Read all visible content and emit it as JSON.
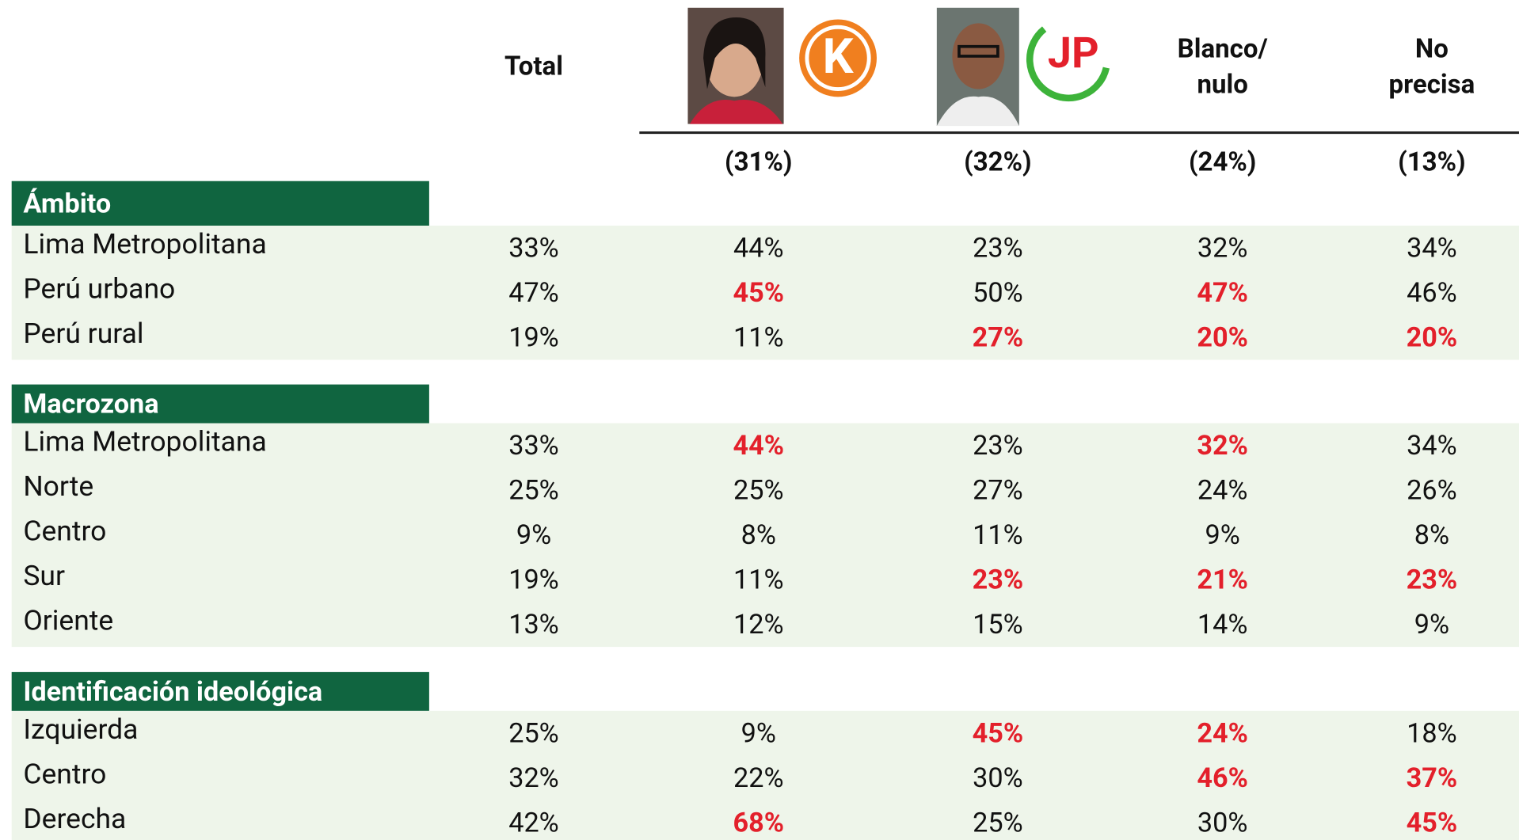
{
  "header": {
    "columns": [
      {
        "label": "Total"
      },
      {
        "logo": "K",
        "share": "(31%)"
      },
      {
        "logo": "JP",
        "share": "(32%)"
      },
      {
        "label_lines": [
          "Blanco/",
          "nulo"
        ],
        "share": "(24%)"
      },
      {
        "label_lines": [
          "No",
          "precisa"
        ],
        "share": "(13%)"
      }
    ]
  },
  "highlight_color": "#e3202b",
  "sections": [
    {
      "title": "Ámbito",
      "rows": [
        {
          "label": "Lima Metropolitana",
          "cells": [
            {
              "text": "33%"
            },
            {
              "text": "44%"
            },
            {
              "text": "23%"
            },
            {
              "text": "32%"
            },
            {
              "text": "34%"
            }
          ]
        },
        {
          "label": "Perú urbano",
          "cells": [
            {
              "text": "47%"
            },
            {
              "text": "45%",
              "highlight": true
            },
            {
              "text": "50%"
            },
            {
              "text": "47%",
              "highlight": true
            },
            {
              "text": "46%"
            }
          ]
        },
        {
          "label": "Perú rural",
          "cells": [
            {
              "text": "19%"
            },
            {
              "text": "11%"
            },
            {
              "text": "27%",
              "highlight": true
            },
            {
              "text": "20%",
              "highlight": true
            },
            {
              "text": "20%",
              "highlight": true
            }
          ]
        }
      ]
    },
    {
      "title": "Macrozona",
      "rows": [
        {
          "label": "Lima Metropolitana",
          "cells": [
            {
              "text": "33%"
            },
            {
              "text": "44%",
              "highlight": true
            },
            {
              "text": "23%"
            },
            {
              "text": "32%",
              "highlight": true
            },
            {
              "text": "34%"
            }
          ]
        },
        {
          "label": "Norte",
          "cells": [
            {
              "text": "25%"
            },
            {
              "text": "25%"
            },
            {
              "text": "27%"
            },
            {
              "text": "24%"
            },
            {
              "text": "26%"
            }
          ]
        },
        {
          "label": "Centro",
          "cells": [
            {
              "text": "9%"
            },
            {
              "text": "8%"
            },
            {
              "text": "11%"
            },
            {
              "text": "9%"
            },
            {
              "text": "8%"
            }
          ]
        },
        {
          "label": "Sur",
          "cells": [
            {
              "text": "19%"
            },
            {
              "text": "11%"
            },
            {
              "text": "23%",
              "highlight": true
            },
            {
              "text": "21%",
              "highlight": true
            },
            {
              "text": "23%",
              "highlight": true
            }
          ]
        },
        {
          "label": "Oriente",
          "cells": [
            {
              "text": "13%"
            },
            {
              "text": "12%"
            },
            {
              "text": "15%"
            },
            {
              "text": "14%"
            },
            {
              "text": "9%"
            }
          ]
        }
      ]
    },
    {
      "title": "Identificación ideológica",
      "rows": [
        {
          "label": "Izquierda",
          "cells": [
            {
              "text": "25%"
            },
            {
              "text": "9%"
            },
            {
              "text": "45%",
              "highlight": true
            },
            {
              "text": "24%",
              "highlight": true
            },
            {
              "text": "18%"
            }
          ]
        },
        {
          "label": "Centro",
          "cells": [
            {
              "text": "32%"
            },
            {
              "text": "22%"
            },
            {
              "text": "30%"
            },
            {
              "text": "46%",
              "highlight": true
            },
            {
              "text": "37%",
              "highlight": true
            }
          ]
        },
        {
          "label": "Derecha",
          "cells": [
            {
              "text": "42%"
            },
            {
              "text": "68%",
              "highlight": true
            },
            {
              "text": "25%"
            },
            {
              "text": "30%"
            },
            {
              "text": "45%",
              "highlight": true
            }
          ]
        }
      ]
    }
  ]
}
